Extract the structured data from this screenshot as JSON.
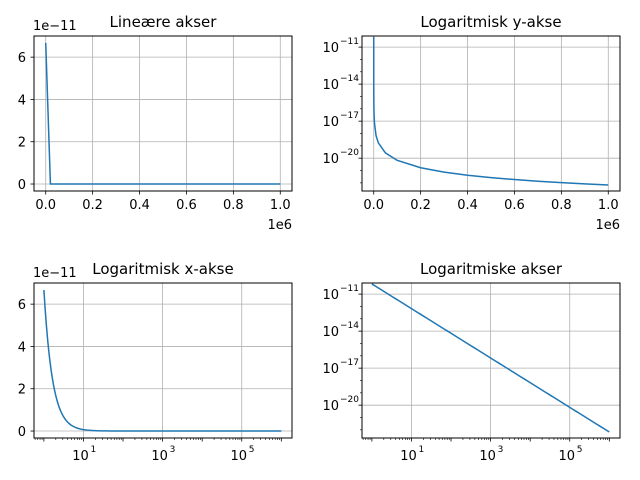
{
  "chart_data": [
    {
      "type": "line",
      "title": "Lineære akser",
      "xscale": "linear",
      "yscale": "linear",
      "x": [
        1,
        20000,
        200000,
        400000,
        600000,
        800000,
        1000000
      ],
      "y": [
        6.674e-11,
        1.67e-19,
        1.67e-21,
        4.2e-22,
        1.9e-22,
        1e-22,
        6.67e-23
      ],
      "xlim": [
        -50000,
        1050000
      ],
      "ylim": [
        -3.3e-12,
        7e-11
      ],
      "xticks": [
        0,
        200000,
        400000,
        600000,
        800000,
        1000000
      ],
      "xticklabels": [
        "0.0",
        "0.2",
        "0.4",
        "0.6",
        "0.8",
        "1.0"
      ],
      "yticks": [
        0,
        2e-11,
        4e-11,
        6e-11
      ],
      "yticklabels": [
        "0",
        "2",
        "4",
        "6"
      ],
      "x_offset_label": "1e6",
      "y_offset_label": "1e−11",
      "grid": true
    },
    {
      "type": "line",
      "title": "Logaritmisk y-akse",
      "xscale": "linear",
      "yscale": "log",
      "x": [
        1,
        10,
        30,
        100,
        300,
        1000,
        3000,
        10000,
        20000,
        50000,
        100000,
        200000,
        300000,
        400000,
        500000,
        600000,
        700000,
        800000,
        900000,
        1000000
      ],
      "ylim_exp": [
        -22.66,
        -10.1
      ],
      "xlim": [
        -50000,
        1050000
      ],
      "xticks": [
        0,
        200000,
        400000,
        600000,
        800000,
        1000000
      ],
      "xticklabels": [
        "0.0",
        "0.2",
        "0.4",
        "0.6",
        "0.8",
        "1.0"
      ],
      "yticks_exp": [
        -11,
        -14,
        -17,
        -20
      ],
      "x_offset_label": "1e6",
      "grid": true
    },
    {
      "type": "line",
      "title": "Logaritmisk x-akse",
      "xscale": "log",
      "yscale": "linear",
      "xlim_exp": [
        -0.25,
        6.27
      ],
      "ylim": [
        -3.3e-12,
        7e-11
      ],
      "xticks_exp": [
        1,
        3,
        5
      ],
      "yticks": [
        0,
        2e-11,
        4e-11,
        6e-11
      ],
      "yticklabels": [
        "0",
        "2",
        "4",
        "6"
      ],
      "y_offset_label": "1e−11",
      "grid": true
    },
    {
      "type": "line",
      "title": "Logaritmiske akser",
      "xscale": "log",
      "yscale": "log",
      "xlim_exp": [
        -0.25,
        6.27
      ],
      "ylim_exp": [
        -22.66,
        -10.1
      ],
      "xticks_exp": [
        1,
        3,
        5
      ],
      "yticks_exp": [
        -11,
        -14,
        -17,
        -20
      ],
      "grid": true
    }
  ],
  "series_color": "#1f77b4"
}
